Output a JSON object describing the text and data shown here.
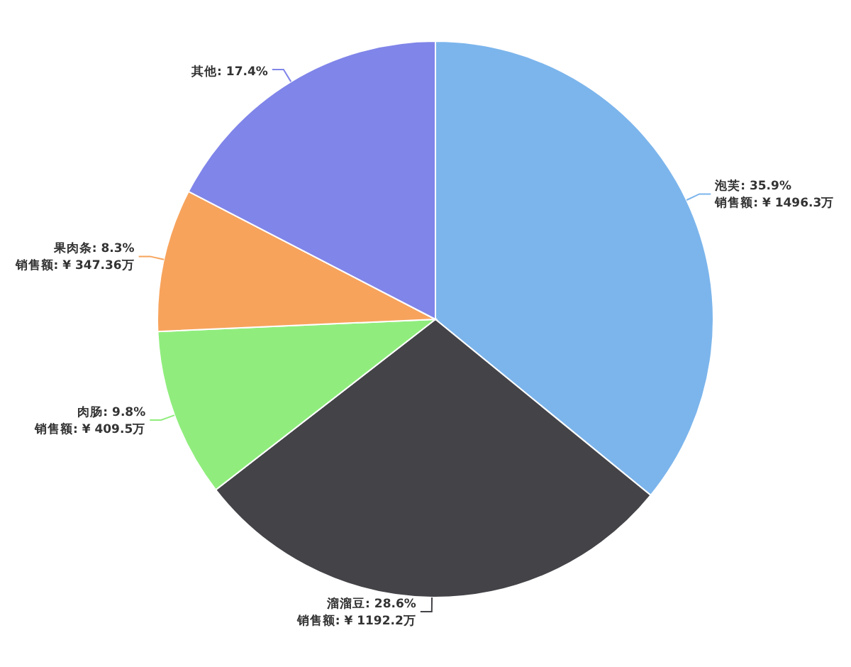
{
  "chart_data": {
    "type": "pie",
    "categories": [
      "泡芙",
      "溜溜豆",
      "肉肠",
      "果肉条",
      "其他"
    ],
    "values": [
      35.9,
      28.6,
      9.8,
      8.3,
      17.4
    ],
    "value_labels": [
      "35.9%\n销售额: ¥ 1496.3万",
      "28.6%\n销售额: ¥ 1192.2万",
      "9.8%\n销售额: ¥ 409.5万",
      "8.3%\n销售额: ¥ 347.36万",
      "17.4%"
    ],
    "colors": [
      "#7cb5ec",
      "#434348",
      "#90ed7d",
      "#f7a35c",
      "#8085e9"
    ]
  }
}
